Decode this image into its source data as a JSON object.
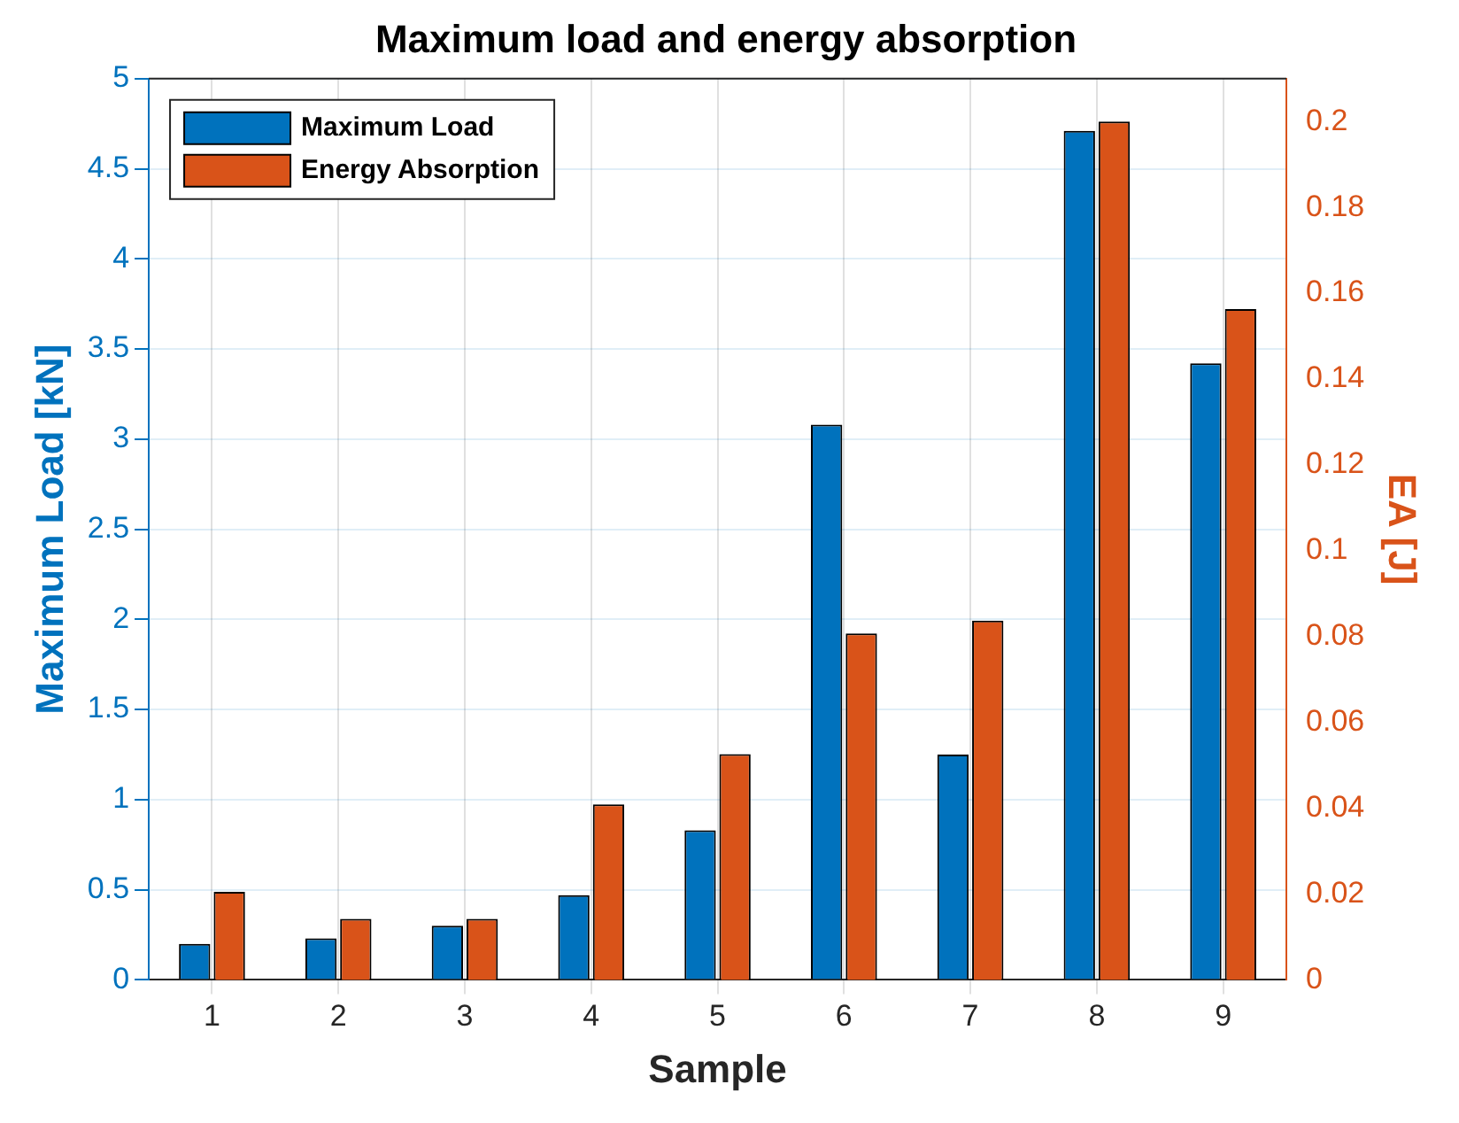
{
  "chart_data": {
    "type": "bar",
    "title": "Maximum load and energy absorption",
    "xlabel": "Sample",
    "ylabel": "Maximum Load [kN]",
    "y2label": "EA [J]",
    "categories": [
      "1",
      "2",
      "3",
      "4",
      "5",
      "6",
      "7",
      "8",
      "9"
    ],
    "series": [
      {
        "name": "Maximum Load",
        "color": "#0072bd",
        "values": [
          0.2,
          0.23,
          0.3,
          0.47,
          0.83,
          3.08,
          1.25,
          4.71,
          3.42
        ]
      },
      {
        "name": "Energy Absorption",
        "color": "#d95319",
        "axis": "y2",
        "values": [
          0.0205,
          0.0142,
          0.0142,
          0.0409,
          0.0526,
          0.0807,
          0.0837,
          0.2,
          0.1563
        ]
      }
    ],
    "ylim": [
      0,
      5
    ],
    "yticks": [
      0,
      0.5,
      1,
      1.5,
      2,
      2.5,
      3,
      3.5,
      4,
      4.5,
      5
    ],
    "y2lim": [
      0,
      0.21
    ],
    "y2ticks": [
      0,
      0.02,
      0.04,
      0.06,
      0.08,
      0.1,
      0.12,
      0.14,
      0.16,
      0.18,
      0.2
    ],
    "grid": true,
    "legend": "top left"
  }
}
